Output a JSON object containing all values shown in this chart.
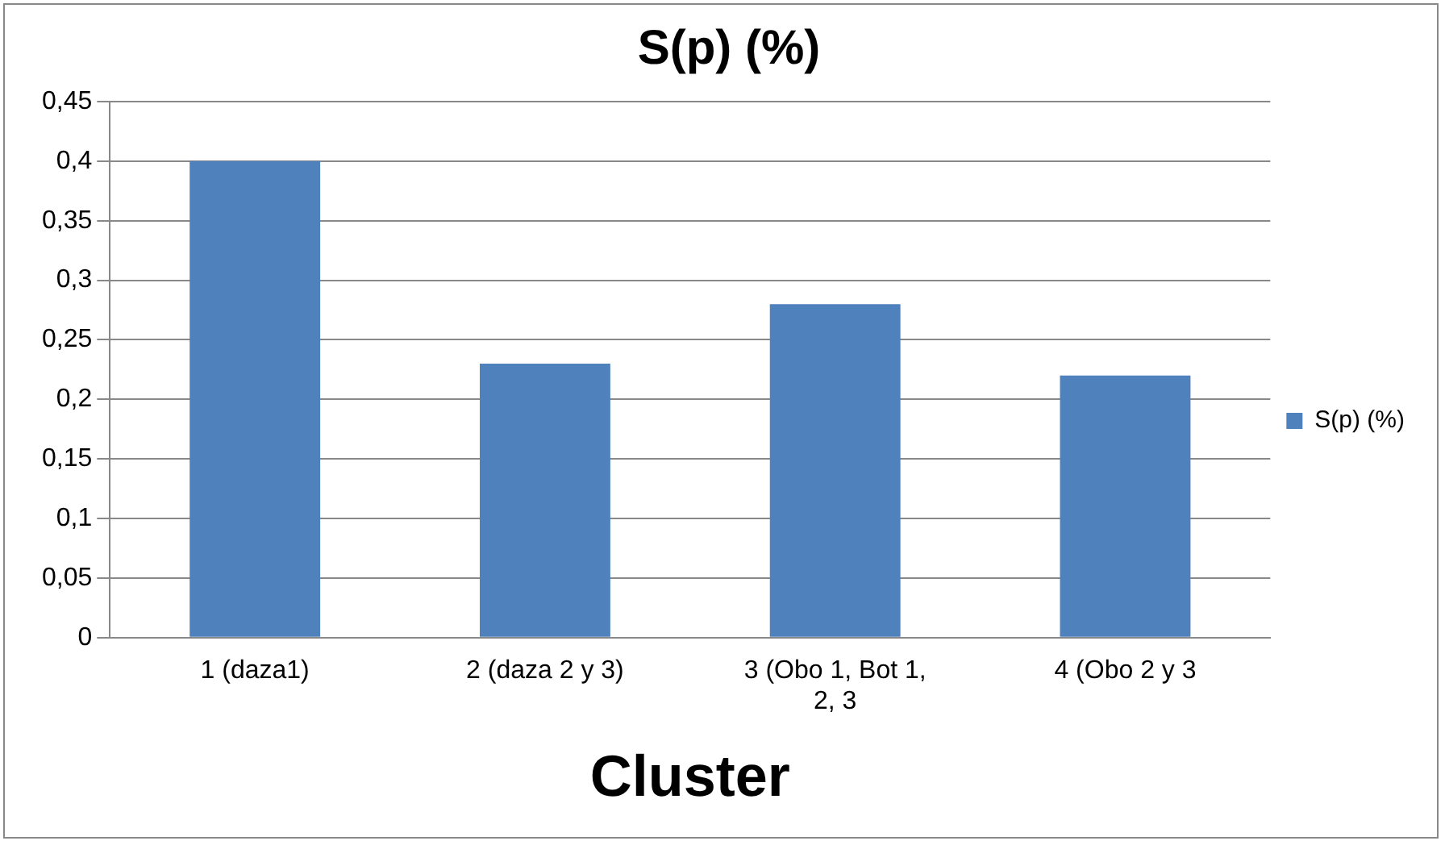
{
  "chart_data": {
    "type": "bar",
    "title": "S(p) (%)",
    "xlabel": "Cluster",
    "categories": [
      "1 (daza1)",
      "2 (daza 2 y 3)",
      "3 (Obo 1, Bot 1, 2, 3",
      "4 (Obo 2 y 3"
    ],
    "series": [
      {
        "name": "S(p) (%)",
        "color": "#4f81bd",
        "values": [
          0.4,
          0.23,
          0.28,
          0.22
        ]
      }
    ],
    "ylim": [
      0,
      0.45
    ],
    "yticks": [
      {
        "value": 0,
        "label": "0"
      },
      {
        "value": 0.05,
        "label": "0,05"
      },
      {
        "value": 0.1,
        "label": "0,1"
      },
      {
        "value": 0.15,
        "label": "0,15"
      },
      {
        "value": 0.2,
        "label": "0,2"
      },
      {
        "value": 0.25,
        "label": "0,25"
      },
      {
        "value": 0.3,
        "label": "0,3"
      },
      {
        "value": 0.35,
        "label": "0,35"
      },
      {
        "value": 0.4,
        "label": "0,4"
      },
      {
        "value": 0.45,
        "label": "0,45"
      }
    ],
    "grid": "y",
    "legend": "right"
  }
}
